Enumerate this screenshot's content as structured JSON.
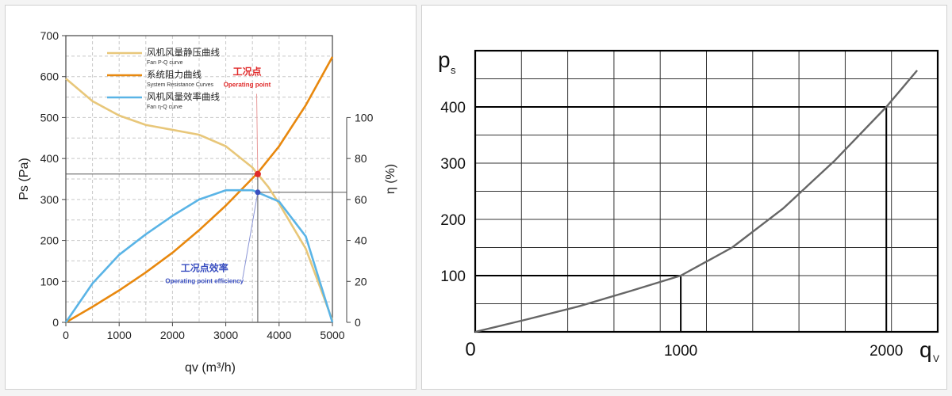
{
  "chart_data": [
    {
      "type": "line",
      "xlabel": "qv (m³/h)",
      "ylabel": "Ps (Pa)",
      "y2label": "η (%)",
      "xlim": [
        0,
        5000
      ],
      "ylim": [
        0,
        700
      ],
      "y2lim": [
        0,
        100
      ],
      "x_ticks": [
        0,
        1000,
        2000,
        3000,
        4000,
        5000
      ],
      "y_ticks": [
        0,
        100,
        200,
        300,
        400,
        500,
        600,
        700
      ],
      "y2_ticks": [
        0,
        20,
        40,
        60,
        80,
        100
      ],
      "grid": true,
      "legend_position": "top-left",
      "series": [
        {
          "name": "风机风量静压曲线",
          "name_en": "Fan P-Q curve",
          "axis": "left",
          "color": "#e8c77a",
          "x": [
            0,
            500,
            1000,
            1500,
            2000,
            2500,
            3000,
            3500,
            3800,
            4000,
            4500,
            5000
          ],
          "y": [
            595,
            540,
            505,
            482,
            470,
            458,
            430,
            378,
            330,
            290,
            180,
            5
          ]
        },
        {
          "name": "系统阻力曲线",
          "name_en": "System Resistance Curves",
          "axis": "left",
          "color": "#e8880e",
          "x": [
            0,
            500,
            1000,
            1500,
            2000,
            2500,
            3000,
            3600,
            4000,
            4500,
            5000
          ],
          "y": [
            0,
            38,
            78,
            122,
            170,
            225,
            285,
            365,
            430,
            530,
            648
          ]
        },
        {
          "name": "风机风量效率曲线",
          "name_en": "Fan η-Q curve",
          "axis": "right",
          "color": "#5ab4e6",
          "x": [
            0,
            500,
            1000,
            1500,
            2000,
            2500,
            3000,
            3500,
            4000,
            4500,
            5000
          ],
          "y": [
            0,
            19,
            33,
            43,
            52,
            60,
            64.5,
            64.5,
            59,
            42,
            0
          ]
        }
      ],
      "annotations": [
        {
          "name": "operating-point",
          "label_cn": "工况点",
          "label_en": "Operating point",
          "color": "#e02a2a",
          "x": 3600,
          "y": 362,
          "label_x": 3400,
          "label_y": 585
        },
        {
          "name": "operating-point-efficiency",
          "label_cn": "工况点效率",
          "label_en": "Operating point efficiency",
          "color": "#3a4fc0",
          "x": 3600,
          "y_percent": 63.5,
          "label_x": 2600,
          "label_y": 125
        }
      ]
    },
    {
      "type": "line",
      "ylabel_main": "p",
      "ylabel_sub": "s",
      "xlabel_main": "q",
      "xlabel_sub": "V",
      "xlim": [
        0,
        2250
      ],
      "ylim": [
        0,
        500
      ],
      "x_tick_labels": [
        0,
        1000,
        2000
      ],
      "y_tick_labels": [
        100,
        200,
        300,
        400
      ],
      "x_grid_step": 225,
      "y_grid_step": 50,
      "grid": true,
      "highlight_points": [
        {
          "x": 1000,
          "y": 100
        },
        {
          "x": 2000,
          "y": 400
        }
      ],
      "series": [
        {
          "color": "#666666",
          "x": [
            0,
            250,
            500,
            750,
            1000,
            1250,
            1500,
            1750,
            2000,
            2150
          ],
          "y": [
            0,
            22,
            45,
            72,
            100,
            150,
            220,
            305,
            400,
            465
          ]
        }
      ]
    }
  ]
}
